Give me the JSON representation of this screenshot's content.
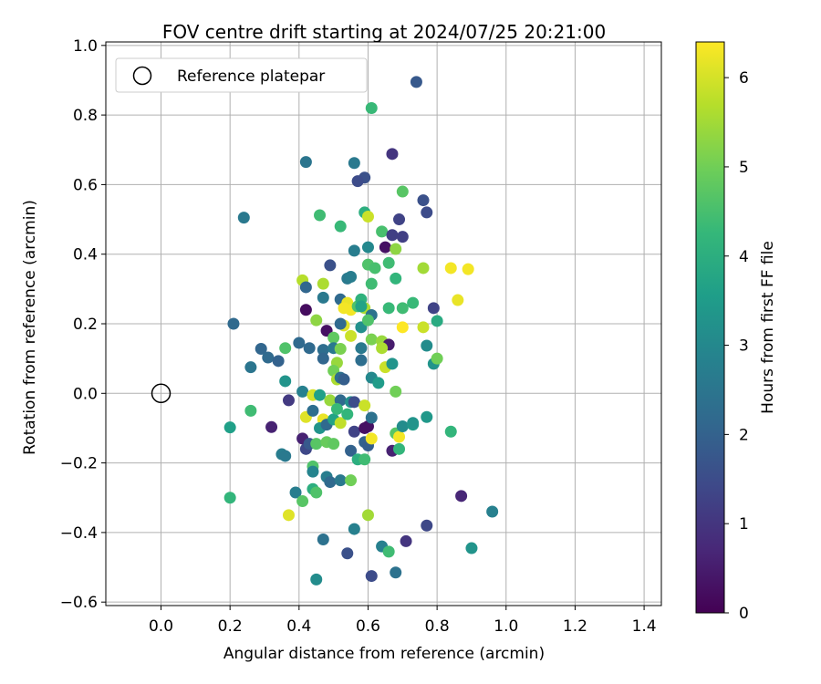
{
  "chart_data": {
    "type": "scatter",
    "title": "FOV centre drift starting at 2024/07/25 20:21:00",
    "xlabel": "Angular distance from reference (arcmin)",
    "ylabel": "Rotation from reference (arcmin)",
    "xlim": [
      -0.16,
      1.45
    ],
    "ylim": [
      -0.61,
      1.01
    ],
    "xticks": [
      0.0,
      0.2,
      0.4,
      0.6,
      0.8,
      1.0,
      1.2,
      1.4
    ],
    "xtick_labels": [
      "0.0",
      "0.2",
      "0.4",
      "0.6",
      "0.8",
      "1.0",
      "1.2",
      "1.4"
    ],
    "yticks": [
      -0.6,
      -0.4,
      -0.2,
      0.0,
      0.2,
      0.4,
      0.6,
      0.8,
      1.0
    ],
    "ytick_labels": [
      "−0.6",
      "−0.4",
      "−0.2",
      "0.0",
      "0.2",
      "0.4",
      "0.6",
      "0.8",
      "1.0"
    ],
    "grid": true,
    "legend": {
      "position": "top-left",
      "label": "Reference platepar"
    },
    "reference_point": {
      "x": 0.0,
      "y": 0.0
    },
    "colorbar": {
      "label": "Hours from first FF file",
      "range": [
        0,
        6.4
      ],
      "ticks": [
        0,
        1,
        2,
        3,
        4,
        5,
        6
      ],
      "tick_labels": [
        "0",
        "1",
        "2",
        "3",
        "4",
        "5",
        "6"
      ],
      "colormap": "viridis"
    },
    "points": [
      [
        0.74,
        0.895,
        1.8
      ],
      [
        0.61,
        0.82,
        4.3
      ],
      [
        0.42,
        0.665,
        2.5
      ],
      [
        0.56,
        0.662,
        2.6
      ],
      [
        0.67,
        0.688,
        1.0
      ],
      [
        0.59,
        0.62,
        1.6
      ],
      [
        0.57,
        0.61,
        1.5
      ],
      [
        0.7,
        0.58,
        4.7
      ],
      [
        0.76,
        0.555,
        1.6
      ],
      [
        0.77,
        0.52,
        1.5
      ],
      [
        0.24,
        0.505,
        2.6
      ],
      [
        0.46,
        0.512,
        4.4
      ],
      [
        0.52,
        0.48,
        4.3
      ],
      [
        0.59,
        0.52,
        4.0
      ],
      [
        0.6,
        0.508,
        5.9
      ],
      [
        0.69,
        0.5,
        1.3
      ],
      [
        0.64,
        0.465,
        4.5
      ],
      [
        0.67,
        0.455,
        1.2
      ],
      [
        0.7,
        0.45,
        1.2
      ],
      [
        0.65,
        0.42,
        0.3
      ],
      [
        0.68,
        0.415,
        5.3
      ],
      [
        0.56,
        0.41,
        2.7
      ],
      [
        0.6,
        0.42,
        3.0
      ],
      [
        0.49,
        0.368,
        1.6
      ],
      [
        0.6,
        0.37,
        4.6
      ],
      [
        0.62,
        0.36,
        4.5
      ],
      [
        0.66,
        0.375,
        4.4
      ],
      [
        0.68,
        0.33,
        4.2
      ],
      [
        0.54,
        0.33,
        2.6
      ],
      [
        0.55,
        0.335,
        2.7
      ],
      [
        0.41,
        0.325,
        5.7
      ],
      [
        0.42,
        0.305,
        2.1
      ],
      [
        0.47,
        0.315,
        5.6
      ],
      [
        0.61,
        0.315,
        4.4
      ],
      [
        0.45,
        0.21,
        5.3
      ],
      [
        0.47,
        0.275,
        2.6
      ],
      [
        0.52,
        0.27,
        2.2
      ],
      [
        0.54,
        0.26,
        6.2
      ],
      [
        0.55,
        0.24,
        6.3
      ],
      [
        0.57,
        0.25,
        4.6
      ],
      [
        0.58,
        0.27,
        4.1
      ],
      [
        0.59,
        0.245,
        5.6
      ],
      [
        0.53,
        0.245,
        6.3
      ],
      [
        0.58,
        0.25,
        3.7
      ],
      [
        0.61,
        0.225,
        2.4
      ],
      [
        0.66,
        0.245,
        4.3
      ],
      [
        0.7,
        0.245,
        4.4
      ],
      [
        0.73,
        0.26,
        4.3
      ],
      [
        0.76,
        0.36,
        5.5
      ],
      [
        0.79,
        0.245,
        1.3
      ],
      [
        0.84,
        0.36,
        6.3
      ],
      [
        0.86,
        0.268,
        6.2
      ],
      [
        0.89,
        0.357,
        6.3
      ],
      [
        0.21,
        0.2,
        2.2
      ],
      [
        0.42,
        0.24,
        0.2
      ],
      [
        0.48,
        0.18,
        0.3
      ],
      [
        0.5,
        0.16,
        4.8
      ],
      [
        0.53,
        0.195,
        6.1
      ],
      [
        0.52,
        0.2,
        2.2
      ],
      [
        0.55,
        0.165,
        5.9
      ],
      [
        0.58,
        0.19,
        3.2
      ],
      [
        0.6,
        0.21,
        4.6
      ],
      [
        0.61,
        0.155,
        5.1
      ],
      [
        0.64,
        0.15,
        5.4
      ],
      [
        0.66,
        0.14,
        0.5
      ],
      [
        0.64,
        0.13,
        5.6
      ],
      [
        0.7,
        0.19,
        6.4
      ],
      [
        0.76,
        0.19,
        5.9
      ],
      [
        0.77,
        0.137,
        3.1
      ],
      [
        0.8,
        0.208,
        3.9
      ],
      [
        0.79,
        0.085,
        3.3
      ],
      [
        0.8,
        0.1,
        5.0
      ],
      [
        0.29,
        0.128,
        2.1
      ],
      [
        0.31,
        0.103,
        2.2
      ],
      [
        0.34,
        0.093,
        2.0
      ],
      [
        0.36,
        0.13,
        4.6
      ],
      [
        0.4,
        0.145,
        2.2
      ],
      [
        0.43,
        0.13,
        2.2
      ],
      [
        0.47,
        0.125,
        2.3
      ],
      [
        0.47,
        0.1,
        2.1
      ],
      [
        0.5,
        0.13,
        2.6
      ],
      [
        0.52,
        0.128,
        5.1
      ],
      [
        0.58,
        0.13,
        2.6
      ],
      [
        0.58,
        0.095,
        2.3
      ],
      [
        0.51,
        0.088,
        5.4
      ],
      [
        0.5,
        0.065,
        5.0
      ],
      [
        0.51,
        0.04,
        5.6
      ],
      [
        0.26,
        0.075,
        2.5
      ],
      [
        0.36,
        0.035,
        3.3
      ],
      [
        0.52,
        0.045,
        2.3
      ],
      [
        0.53,
        0.04,
        1.9
      ],
      [
        0.61,
        0.045,
        3.0
      ],
      [
        0.63,
        0.03,
        3.5
      ],
      [
        0.65,
        0.075,
        5.9
      ],
      [
        0.67,
        0.085,
        3.3
      ],
      [
        0.68,
        0.005,
        5.0
      ],
      [
        0.37,
        -0.02,
        1.1
      ],
      [
        0.41,
        0.005,
        2.8
      ],
      [
        0.44,
        -0.005,
        6.0
      ],
      [
        0.46,
        -0.005,
        3.6
      ],
      [
        0.49,
        -0.02,
        5.4
      ],
      [
        0.52,
        -0.02,
        2.2
      ],
      [
        0.55,
        -0.025,
        3.2
      ],
      [
        0.56,
        -0.025,
        1.5
      ],
      [
        0.59,
        -0.035,
        5.9
      ],
      [
        0.26,
        -0.05,
        4.4
      ],
      [
        0.2,
        -0.098,
        3.6
      ],
      [
        0.32,
        -0.097,
        0.6
      ],
      [
        0.42,
        -0.068,
        6.1
      ],
      [
        0.44,
        -0.05,
        2.3
      ],
      [
        0.47,
        -0.075,
        6.2
      ],
      [
        0.46,
        -0.1,
        3.3
      ],
      [
        0.48,
        -0.09,
        2.2
      ],
      [
        0.5,
        -0.075,
        3.7
      ],
      [
        0.51,
        -0.045,
        4.3
      ],
      [
        0.52,
        -0.085,
        5.8
      ],
      [
        0.54,
        -0.06,
        4.2
      ],
      [
        0.56,
        -0.11,
        1.3
      ],
      [
        0.59,
        -0.1,
        0.3
      ],
      [
        0.6,
        -0.095,
        0.3
      ],
      [
        0.61,
        -0.07,
        2.4
      ],
      [
        0.68,
        -0.115,
        4.7
      ],
      [
        0.69,
        -0.125,
        6.3
      ],
      [
        0.7,
        -0.095,
        3.1
      ],
      [
        0.73,
        -0.09,
        3.5
      ],
      [
        0.73,
        -0.085,
        3.3
      ],
      [
        0.77,
        -0.068,
        3.4
      ],
      [
        0.84,
        -0.11,
        4.2
      ],
      [
        0.41,
        -0.13,
        0.6
      ],
      [
        0.42,
        -0.16,
        1.4
      ],
      [
        0.43,
        -0.145,
        1.8
      ],
      [
        0.45,
        -0.145,
        4.7
      ],
      [
        0.48,
        -0.14,
        4.9
      ],
      [
        0.5,
        -0.145,
        4.8
      ],
      [
        0.55,
        -0.165,
        2.0
      ],
      [
        0.59,
        -0.14,
        2.0
      ],
      [
        0.6,
        -0.15,
        1.9
      ],
      [
        0.61,
        -0.13,
        6.3
      ],
      [
        0.67,
        -0.165,
        0.6
      ],
      [
        0.69,
        -0.16,
        4.2
      ],
      [
        0.35,
        -0.175,
        2.7
      ],
      [
        0.36,
        -0.18,
        2.6
      ],
      [
        0.44,
        -0.21,
        4.6
      ],
      [
        0.44,
        -0.225,
        2.9
      ],
      [
        0.48,
        -0.24,
        2.7
      ],
      [
        0.49,
        -0.255,
        2.2
      ],
      [
        0.52,
        -0.25,
        2.6
      ],
      [
        0.55,
        -0.25,
        5.0
      ],
      [
        0.57,
        -0.19,
        4.0
      ],
      [
        0.59,
        -0.19,
        4.4
      ],
      [
        0.2,
        -0.3,
        4.2
      ],
      [
        0.39,
        -0.285,
        2.7
      ],
      [
        0.44,
        -0.275,
        4.0
      ],
      [
        0.45,
        -0.285,
        4.6
      ],
      [
        0.41,
        -0.31,
        4.7
      ],
      [
        0.37,
        -0.35,
        6.1
      ],
      [
        0.6,
        -0.35,
        5.5
      ],
      [
        0.56,
        -0.39,
        2.8
      ],
      [
        0.47,
        -0.42,
        2.4
      ],
      [
        0.54,
        -0.46,
        1.6
      ],
      [
        0.64,
        -0.44,
        2.8
      ],
      [
        0.66,
        -0.455,
        4.4
      ],
      [
        0.71,
        -0.425,
        1.0
      ],
      [
        0.45,
        -0.535,
        3.1
      ],
      [
        0.61,
        -0.525,
        1.5
      ],
      [
        0.68,
        -0.515,
        2.4
      ],
      [
        0.77,
        -0.38,
        1.4
      ],
      [
        0.87,
        -0.295,
        0.7
      ],
      [
        0.9,
        -0.445,
        3.3
      ],
      [
        0.96,
        -0.34,
        2.8
      ]
    ]
  }
}
